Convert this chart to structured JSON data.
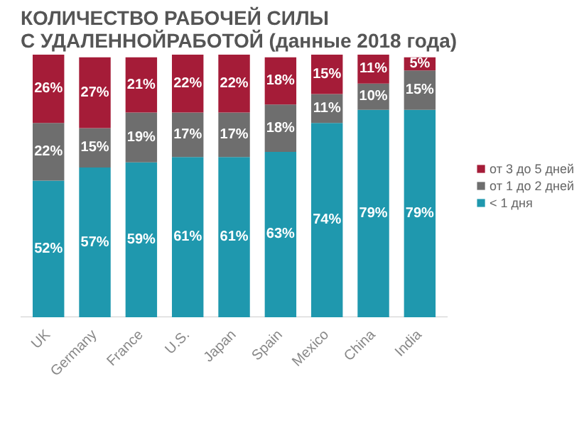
{
  "chart_data": {
    "type": "bar",
    "stacked": true,
    "title": "КОЛИЧЕСТВО РАБОЧЕЙ СИЛЫ\nС УДАЛЕННОЙРАБОТОЙ (данные 2018 года)",
    "categories": [
      "UK",
      "Germany",
      "France",
      "U.S.",
      "Japan",
      "Spain",
      "Mexico",
      "China",
      "India"
    ],
    "series": [
      {
        "name": "< 1 дня",
        "color": "#1f98ae",
        "values": [
          52,
          57,
          59,
          61,
          61,
          63,
          74,
          79,
          79
        ],
        "value_labels": [
          "52%",
          "57%",
          "59%",
          "61%",
          "61%",
          "63%",
          "74%",
          "79%",
          "79%"
        ]
      },
      {
        "name": "от 1 до 2 дней",
        "color": "#6e6e6e",
        "values": [
          22,
          15,
          19,
          17,
          17,
          18,
          11,
          10,
          15
        ],
        "value_labels": [
          "22%",
          "15%",
          "19%",
          "17%",
          "17%",
          "18%",
          "11%",
          "10%",
          "15%"
        ]
      },
      {
        "name": "от 3 до 5 дней",
        "color": "#a51c38",
        "values": [
          26,
          27,
          21,
          22,
          22,
          18,
          15,
          11,
          5
        ],
        "value_labels": [
          "26%",
          "27%",
          "21%",
          "22%",
          "22%",
          "18%",
          "15%",
          "11%",
          "5%"
        ]
      }
    ],
    "legend": "right",
    "grid": false
  }
}
